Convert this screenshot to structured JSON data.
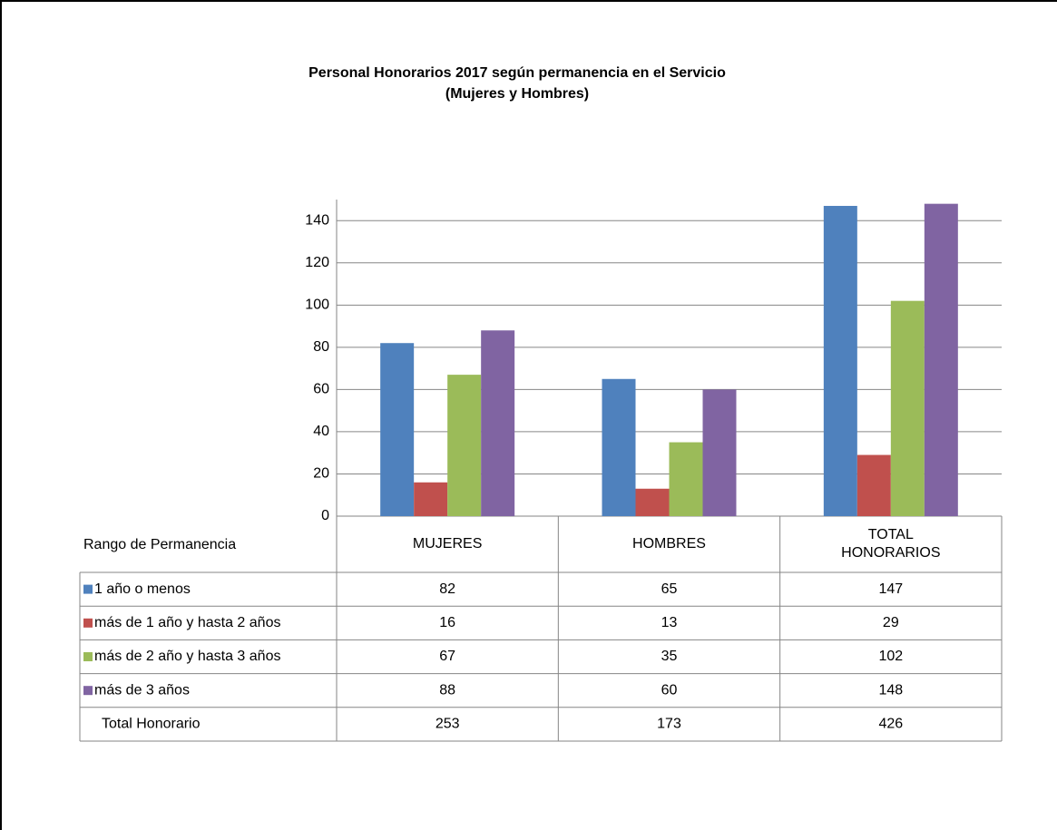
{
  "chart_data": {
    "type": "bar",
    "title": "Personal Honorarios 2017 según permanencia en el Servicio",
    "subtitle": "(Mujeres y Hombres)",
    "table_header": "Rango de Permanencia",
    "categories": [
      "MUJERES",
      "HOMBRES",
      "TOTAL HONORARIOS"
    ],
    "series": [
      {
        "name": "1 año o menos",
        "color": "#4f81bd",
        "values": [
          82,
          65,
          147
        ]
      },
      {
        "name": "más de 1 año y hasta 2 años",
        "color": "#c0504d",
        "values": [
          16,
          13,
          29
        ]
      },
      {
        "name": "más de 2 año y hasta 3 años",
        "color": "#9bbb59",
        "values": [
          67,
          35,
          102
        ]
      },
      {
        "name": "más de 3 años",
        "color": "#8064a2",
        "values": [
          88,
          60,
          148
        ]
      }
    ],
    "total_row": {
      "name": "Total Honorario",
      "values": [
        253,
        173,
        426
      ]
    },
    "ylim": [
      0,
      150
    ],
    "yticks": [
      0,
      20,
      40,
      60,
      80,
      100,
      120,
      140
    ],
    "grid": true
  }
}
